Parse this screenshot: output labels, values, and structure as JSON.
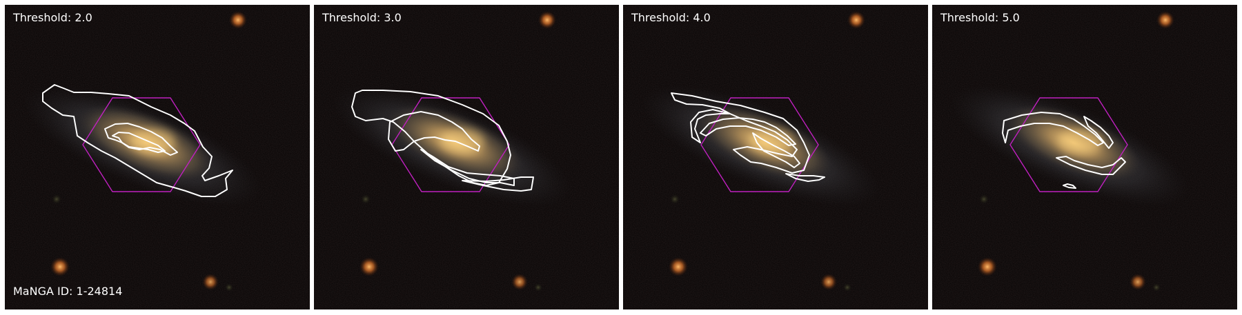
{
  "figure": {
    "id_label": "MaNGA ID: 1-24814",
    "panels": [
      {
        "label": "Threshold: 2.0",
        "threshold": 2.0
      },
      {
        "label": "Threshold: 3.0",
        "threshold": 3.0
      },
      {
        "label": "Threshold: 4.0",
        "threshold": 4.0
      },
      {
        "label": "Threshold: 5.0",
        "threshold": 5.0
      }
    ]
  },
  "colors": {
    "sky": "#050303",
    "galaxy_core": "#e8b868",
    "galaxy_halo": "#8a7550",
    "outer_disk": "#5a6068",
    "star": "#ffaa55",
    "contour": "#ffffff",
    "ifu_hexagon": "#c020c0"
  }
}
